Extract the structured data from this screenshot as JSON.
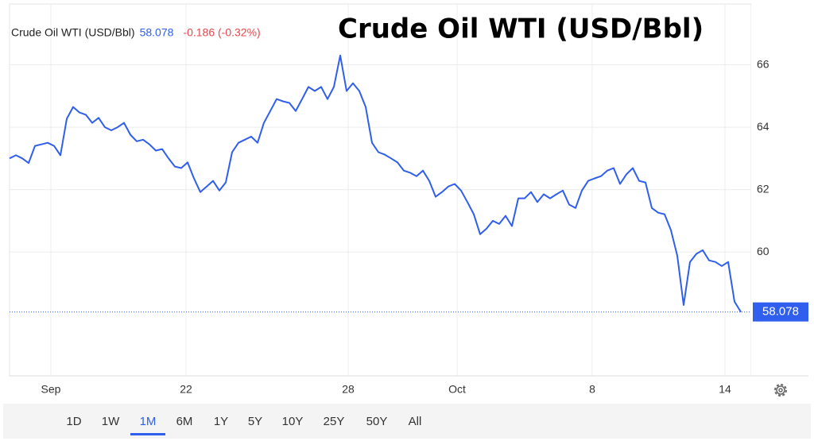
{
  "chart_data": {
    "type": "line",
    "title": "Crude Oil WTI (USD/Bbl)",
    "last_price": 58.078,
    "change": "-0.186 (-0.32%)",
    "series": [
      {
        "name": "Crude Oil WTI (USD/Bbl)",
        "color": "#2f5fec",
        "values": [
          63.0,
          63.1,
          63.0,
          62.85,
          63.4,
          63.45,
          63.5,
          63.4,
          63.1,
          64.27,
          64.65,
          64.47,
          64.4,
          64.14,
          64.3,
          64.0,
          63.9,
          64.0,
          64.14,
          63.76,
          63.55,
          63.6,
          63.45,
          63.25,
          63.3,
          63.0,
          62.74,
          62.69,
          62.87,
          62.36,
          61.92,
          62.1,
          62.28,
          61.97,
          62.23,
          63.2,
          63.5,
          63.6,
          63.7,
          63.5,
          64.14,
          64.52,
          64.9,
          64.83,
          64.78,
          64.52,
          64.9,
          65.29,
          65.16,
          65.29,
          64.9,
          65.29,
          66.3,
          65.16,
          65.41,
          65.16,
          64.65,
          63.5,
          63.2,
          63.12,
          63.0,
          62.87,
          62.61,
          62.54,
          62.43,
          62.61,
          62.28,
          61.77,
          61.92,
          62.1,
          62.18,
          61.97,
          61.6,
          61.21,
          60.57,
          60.75,
          61.0,
          60.9,
          61.16,
          60.83,
          61.72,
          61.72,
          61.92,
          61.6,
          61.85,
          61.72,
          61.85,
          61.97,
          61.52,
          61.41,
          61.97,
          62.28,
          62.36,
          62.43,
          62.61,
          62.69,
          62.18,
          62.49,
          62.69,
          62.28,
          62.23,
          61.41,
          61.26,
          61.21,
          60.7,
          59.88,
          58.3,
          59.68,
          59.94,
          60.06,
          59.73,
          59.68,
          59.55,
          59.68,
          58.41,
          58.078
        ]
      }
    ],
    "xlim": [
      0,
      116.625
    ],
    "xticks": [
      {
        "value": 6.5,
        "label": "Sep"
      },
      {
        "value": 27.75,
        "label": "22"
      },
      {
        "value": 53.25,
        "label": "28"
      },
      {
        "value": 70.375,
        "label": "Oct"
      },
      {
        "value": 91.625,
        "label": "8"
      },
      {
        "value": 112.5,
        "label": "14"
      }
    ],
    "ylim": [
      56.03,
      67.95
    ],
    "yticks": [
      60,
      62,
      64,
      66
    ],
    "grid": true,
    "range_buttons": [
      "1D",
      "1W",
      "1M",
      "6M",
      "1Y",
      "5Y",
      "10Y",
      "25Y",
      "50Y",
      "All"
    ],
    "active_range": 2
  }
}
